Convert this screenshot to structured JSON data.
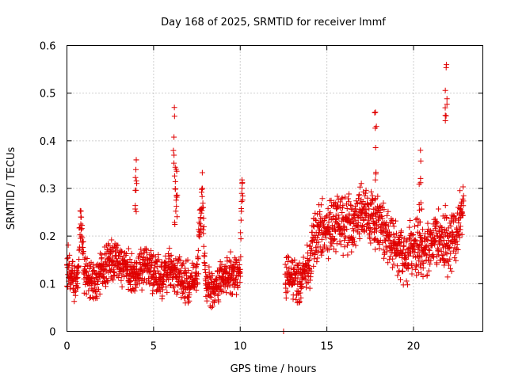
{
  "chart_data": {
    "type": "scatter",
    "title": "Day 168 of 2025, SRMTID for receiver lmmf",
    "xlabel": "GPS time / hours",
    "ylabel": "SRMTID / TECUs",
    "xlim": [
      0,
      24
    ],
    "ylim": [
      0,
      0.6
    ],
    "x_ticks": [
      0,
      5,
      10,
      15,
      20
    ],
    "x_tick_labels": [
      "0",
      "5",
      "10",
      "15",
      "20"
    ],
    "y_ticks": [
      0,
      0.1,
      0.2,
      0.3,
      0.4,
      0.5,
      0.6
    ],
    "y_tick_labels": [
      "0",
      "0.1",
      "0.2",
      "0.3",
      "0.4",
      "0.5",
      "0.6"
    ],
    "grid": true,
    "marker": "plus",
    "color": "#e00000",
    "series": [
      {
        "name": "SRMTID",
        "description": "dense scatter of SRMTID values; representative trend points below (x in hours, y in TECU)",
        "points": [
          [
            0.0,
            0.14
          ],
          [
            0.3,
            0.11
          ],
          [
            0.6,
            0.1
          ],
          [
            0.8,
            0.24
          ],
          [
            1.0,
            0.12
          ],
          [
            1.5,
            0.1
          ],
          [
            2.0,
            0.13
          ],
          [
            2.5,
            0.15
          ],
          [
            3.0,
            0.14
          ],
          [
            3.5,
            0.13
          ],
          [
            4.0,
            0.36
          ],
          [
            4.0,
            0.12
          ],
          [
            4.5,
            0.14
          ],
          [
            5.0,
            0.12
          ],
          [
            5.5,
            0.11
          ],
          [
            6.0,
            0.13
          ],
          [
            6.2,
            0.47
          ],
          [
            6.3,
            0.34
          ],
          [
            6.5,
            0.12
          ],
          [
            7.0,
            0.1
          ],
          [
            7.5,
            0.11
          ],
          [
            7.8,
            0.3
          ],
          [
            8.0,
            0.1
          ],
          [
            8.5,
            0.09
          ],
          [
            9.0,
            0.11
          ],
          [
            9.5,
            0.12
          ],
          [
            10.0,
            0.13
          ],
          [
            10.1,
            0.3
          ],
          [
            12.5,
            0.0
          ],
          [
            12.6,
            0.12
          ],
          [
            13.0,
            0.11
          ],
          [
            13.5,
            0.1
          ],
          [
            14.0,
            0.15
          ],
          [
            14.5,
            0.22
          ],
          [
            15.0,
            0.21
          ],
          [
            15.5,
            0.23
          ],
          [
            16.0,
            0.22
          ],
          [
            16.5,
            0.23
          ],
          [
            17.0,
            0.25
          ],
          [
            17.5,
            0.24
          ],
          [
            17.8,
            0.46
          ],
          [
            18.0,
            0.22
          ],
          [
            18.5,
            0.2
          ],
          [
            19.0,
            0.18
          ],
          [
            19.5,
            0.16
          ],
          [
            20.0,
            0.18
          ],
          [
            20.4,
            0.38
          ],
          [
            20.5,
            0.17
          ],
          [
            21.0,
            0.18
          ],
          [
            21.5,
            0.19
          ],
          [
            21.9,
            0.56
          ],
          [
            22.0,
            0.18
          ],
          [
            22.5,
            0.2
          ],
          [
            22.8,
            0.25
          ]
        ]
      }
    ]
  }
}
